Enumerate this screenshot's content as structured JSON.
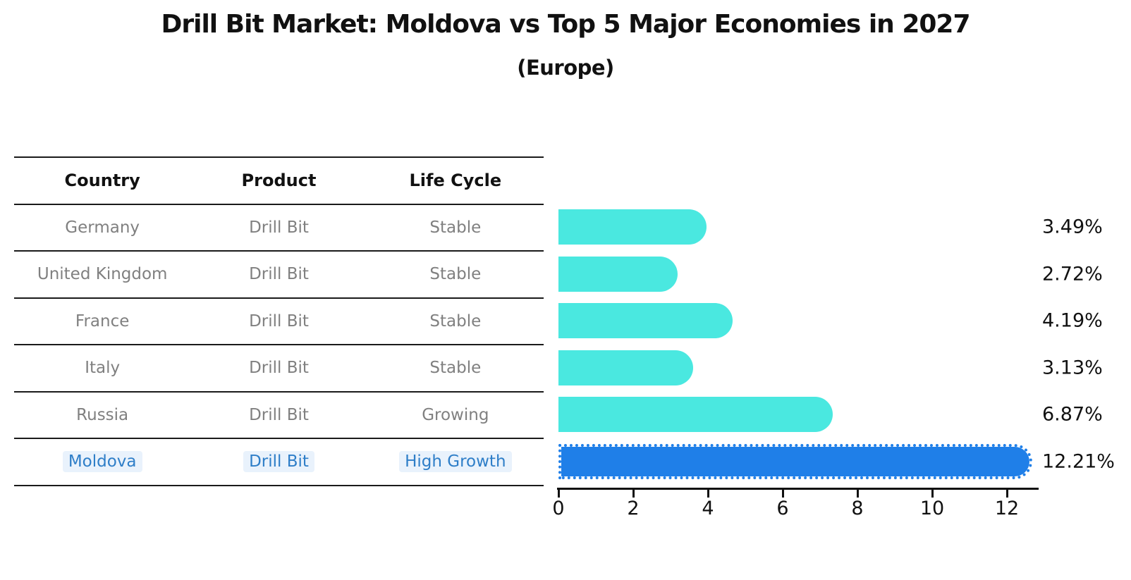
{
  "title": "Drill Bit Market: Moldova vs Top 5 Major Economies in 2027",
  "subtitle": "(Europe)",
  "table": {
    "headers": {
      "country": "Country",
      "product": "Product",
      "life_cycle": "Life Cycle"
    },
    "rows": [
      {
        "country": "Germany",
        "product": "Drill Bit",
        "life_cycle": "Stable",
        "highlight": false
      },
      {
        "country": "United Kingdom",
        "product": "Drill Bit",
        "life_cycle": "Stable",
        "highlight": false
      },
      {
        "country": "France",
        "product": "Drill Bit",
        "life_cycle": "Stable",
        "highlight": false
      },
      {
        "country": "Italy",
        "product": "Drill Bit",
        "life_cycle": "Stable",
        "highlight": false
      },
      {
        "country": "Russia",
        "product": "Drill Bit",
        "life_cycle": "Growing",
        "highlight": false
      },
      {
        "country": "Moldova",
        "product": "Drill Bit",
        "life_cycle": "High Growth",
        "highlight": true
      }
    ]
  },
  "chart_data": {
    "type": "bar",
    "orientation": "horizontal",
    "title": "Drill Bit Market: Moldova vs Top 5 Major Economies in 2027 (Europe)",
    "categories": [
      "Germany",
      "United Kingdom",
      "France",
      "Italy",
      "Russia",
      "Moldova"
    ],
    "values": [
      3.49,
      2.72,
      4.19,
      3.13,
      6.87,
      12.21
    ],
    "value_labels": [
      "3.49%",
      "2.72%",
      "4.19%",
      "3.13%",
      "6.87%",
      "12.21%"
    ],
    "unit": "%",
    "highlight_index": 5,
    "xticks": [
      0,
      2,
      4,
      6,
      8,
      10,
      12
    ],
    "xlim": [
      0,
      12.8
    ],
    "grid": false,
    "legend": false,
    "bar_color": "#4ae8e0",
    "highlight_bar_color": "#1f7fe8",
    "highlight_text_color": "#2e7ec8",
    "axis_color": "#111111",
    "table_text_color": "#808080"
  }
}
